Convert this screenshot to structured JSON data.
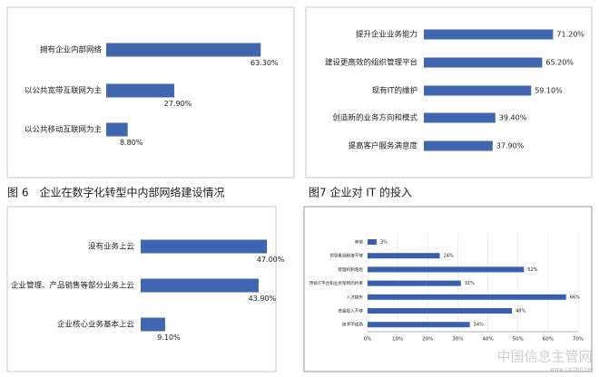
{
  "chart_data": [
    {
      "type": "bar",
      "orientation": "horizontal",
      "title": "图 6　企业在数字化转型中内部网络建设情况",
      "color": "#4066b0",
      "categories": [
        "拥有企业内部网络",
        "以公共宽带互联网为主",
        "以公共移动互联网为主"
      ],
      "values": [
        63.3,
        27.9,
        8.8
      ],
      "value_labels": [
        "63.30%",
        "27.90%",
        "8.80%"
      ]
    },
    {
      "type": "bar",
      "orientation": "horizontal",
      "title": "图7 企业对 IT 的投入",
      "color": "#4066b0",
      "categories": [
        "提升企业业务能力",
        "建设更高效的组织管理平台",
        "现有IT的维护",
        "创造新的业务方向和模式",
        "提高客户服务满意度"
      ],
      "values": [
        71.2,
        65.2,
        59.1,
        39.4,
        37.9
      ],
      "value_labels": [
        "71.20%",
        "65.20%",
        "59.10%",
        "39.40%",
        "37.90%"
      ]
    },
    {
      "type": "bar",
      "orientation": "horizontal",
      "color": "#4066b0",
      "categories": [
        "没有业务上云",
        "企业管理、产品销售等部分业务上云",
        "企业核心业务基本上云"
      ],
      "values": [
        47.0,
        43.9,
        9.1
      ],
      "value_labels": [
        "47.00%",
        "43.90%",
        "9.10%"
      ]
    },
    {
      "type": "bar",
      "orientation": "horizontal",
      "color": "#3a5fad",
      "categories": [
        "其他",
        "领导重视程度不够",
        "管理机制落后",
        "传统IT平台和业务架构的约束",
        "人才缺失",
        "资金投入不够",
        "技术不成熟"
      ],
      "values": [
        3,
        24,
        52,
        31,
        66,
        48,
        34
      ],
      "value_labels": [
        "3%",
        "24%",
        "52%",
        "31%",
        "66%",
        "48%",
        "34%"
      ],
      "xlim": [
        0,
        70
      ],
      "xticks": [
        {
          "value": 0,
          "label": "0%"
        },
        {
          "value": 10,
          "label": "10%"
        },
        {
          "value": 20,
          "label": "20%"
        },
        {
          "value": 30,
          "label": "30%"
        },
        {
          "value": 40,
          "label": "40%"
        },
        {
          "value": 50,
          "label": "50%"
        },
        {
          "value": 60,
          "label": "60%"
        },
        {
          "value": 70,
          "label": "70%"
        }
      ]
    }
  ],
  "watermark": {
    "name": "中国信息主管网",
    "url": "www.cio360.net"
  }
}
